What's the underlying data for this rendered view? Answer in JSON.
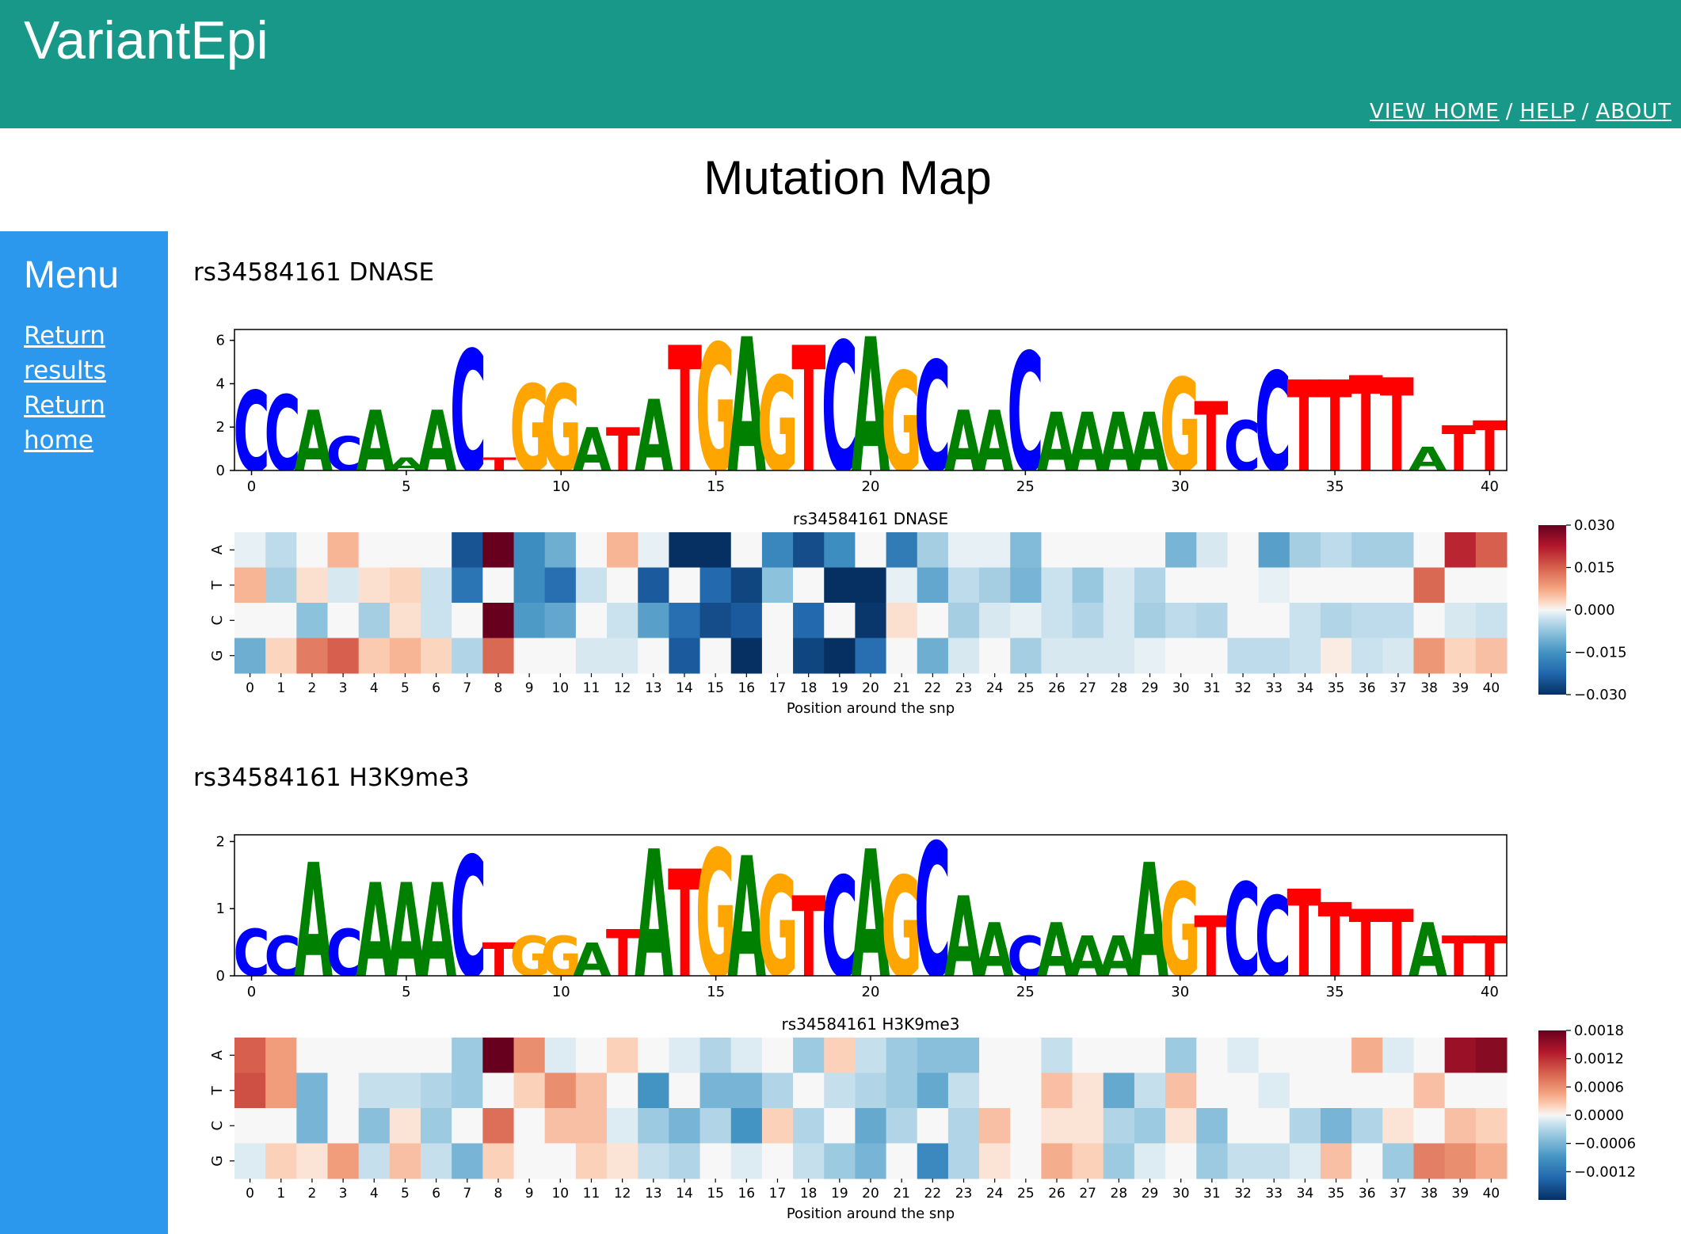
{
  "app": {
    "title": "VariantEpi"
  },
  "nav": {
    "items": [
      "VIEW HOME",
      "HELP",
      "ABOUT"
    ],
    "separator": "/"
  },
  "page": {
    "title": "Mutation Map"
  },
  "sidebar": {
    "title": "Menu",
    "links": [
      "Return results",
      "Return home"
    ]
  },
  "colors": {
    "header": "#189888",
    "sidebar": "#2b98ee",
    "A": "#008000",
    "C": "#0000ff",
    "G": "#ffa500",
    "T": "#ff0000"
  },
  "sections": [
    {
      "title": "rs34584161 DNASE"
    },
    {
      "title": "rs34584161 H3K9me3"
    }
  ],
  "chart_data": [
    {
      "type": "sequence-logo",
      "sequence": "CCACAAACTGGATATGAGTCAGCAACAAAAGTCCTTTTATT",
      "heights": [
        3.7,
        3.5,
        2.8,
        1.6,
        2.8,
        0.6,
        2.8,
        5.6,
        0.6,
        4.0,
        4.0,
        2.0,
        2.0,
        3.3,
        5.8,
        5.9,
        6.2,
        4.4,
        5.8,
        6.0,
        6.2,
        4.6,
        5.1,
        2.8,
        2.8,
        5.5,
        2.7,
        2.7,
        2.7,
        2.7,
        4.3,
        3.2,
        2.3,
        4.6,
        4.2,
        4.2,
        4.4,
        4.3,
        1.1,
        2.1,
        2.3
      ],
      "ylim": [
        0,
        6.5
      ],
      "yticks": [
        "0",
        "2",
        "4",
        "6"
      ],
      "xticks": [
        "0",
        "5",
        "10",
        "15",
        "20",
        "25",
        "30",
        "35",
        "40"
      ]
    },
    {
      "type": "heatmap",
      "title": "rs34584161 DNASE",
      "xlabel": "Position around the snp",
      "rows": [
        "A",
        "T",
        "C",
        "G"
      ],
      "columns": [
        "0",
        "1",
        "2",
        "3",
        "4",
        "5",
        "6",
        "7",
        "8",
        "9",
        "10",
        "11",
        "12",
        "13",
        "14",
        "15",
        "16",
        "17",
        "18",
        "19",
        "20",
        "21",
        "22",
        "23",
        "24",
        "25",
        "26",
        "27",
        "28",
        "29",
        "30",
        "31",
        "32",
        "33",
        "34",
        "35",
        "36",
        "37",
        "38",
        "39",
        "40"
      ],
      "values": [
        [
          -0.001,
          -0.004,
          0.0,
          0.006,
          0.0,
          0.0,
          0.0,
          -0.025,
          0.035,
          -0.016,
          -0.011,
          0.0,
          0.006,
          -0.001,
          -0.03,
          -0.033,
          0.0,
          -0.017,
          -0.026,
          -0.016,
          0.0,
          -0.019,
          -0.006,
          -0.001,
          -0.001,
          -0.009,
          0.0,
          0.0,
          0.0,
          0.0,
          -0.01,
          -0.002,
          0.0,
          -0.013,
          -0.006,
          -0.004,
          -0.006,
          -0.006,
          0.0,
          0.021,
          0.015
        ],
        [
          0.006,
          -0.006,
          0.002,
          -0.002,
          0.002,
          0.003,
          -0.003,
          -0.02,
          0.0,
          -0.016,
          -0.021,
          -0.003,
          0.0,
          -0.024,
          0.0,
          -0.022,
          -0.027,
          -0.008,
          0.0,
          -0.031,
          -0.032,
          -0.001,
          -0.012,
          -0.004,
          -0.006,
          -0.01,
          -0.003,
          -0.007,
          -0.002,
          -0.005,
          0.0,
          0.0,
          0.0,
          -0.001,
          0.0,
          0.0,
          0.0,
          0.0,
          0.014,
          0.0,
          0.0
        ],
        [
          0.0,
          0.0,
          -0.008,
          0.0,
          -0.006,
          0.002,
          -0.003,
          0.0,
          0.035,
          -0.014,
          -0.012,
          0.0,
          -0.003,
          -0.013,
          -0.021,
          -0.026,
          -0.024,
          0.0,
          -0.022,
          0.0,
          -0.029,
          0.002,
          0.0,
          -0.006,
          -0.002,
          -0.001,
          -0.003,
          -0.005,
          -0.002,
          -0.006,
          -0.004,
          -0.005,
          0.0,
          0.0,
          -0.003,
          -0.005,
          -0.004,
          -0.004,
          0.0,
          -0.002,
          -0.003
        ],
        [
          -0.011,
          0.003,
          0.012,
          0.015,
          0.004,
          0.006,
          0.003,
          -0.005,
          0.014,
          0.0,
          0.0,
          -0.002,
          -0.002,
          0.0,
          -0.024,
          0.0,
          -0.03,
          0.0,
          -0.027,
          -0.03,
          -0.021,
          0.0,
          -0.011,
          -0.002,
          0.0,
          -0.006,
          -0.002,
          -0.002,
          -0.002,
          -0.001,
          0.0,
          0.0,
          -0.004,
          -0.004,
          -0.003,
          0.001,
          -0.003,
          -0.002,
          0.009,
          0.003,
          0.005
        ]
      ],
      "colorbar": {
        "ticks": [
          "0.030",
          "0.015",
          "0.000",
          "−0.015",
          "−0.030"
        ]
      }
    },
    {
      "type": "sequence-logo",
      "sequence": "CCACAAACTGGATATGAGTCAGCAACAAAAGTCCTTTTATT",
      "heights": [
        0.7,
        0.6,
        1.7,
        0.7,
        1.4,
        1.4,
        1.4,
        1.8,
        0.5,
        0.6,
        0.6,
        0.5,
        0.7,
        1.9,
        1.6,
        1.9,
        1.8,
        1.5,
        1.2,
        1.5,
        1.9,
        1.5,
        2.0,
        1.2,
        0.8,
        0.6,
        0.8,
        0.6,
        0.6,
        1.7,
        1.4,
        0.9,
        1.4,
        1.2,
        1.3,
        1.1,
        1.0,
        1.0,
        0.8,
        0.6,
        0.6
      ],
      "ylim": [
        0,
        2.1
      ],
      "yticks": [
        "0",
        "1",
        "2"
      ],
      "xticks": [
        "0",
        "5",
        "10",
        "15",
        "20",
        "25",
        "30",
        "35",
        "40"
      ]
    },
    {
      "type": "heatmap",
      "title": "rs34584161 H3K9me3",
      "xlabel": "Position around the snp",
      "rows": [
        "A",
        "T",
        "C",
        "G"
      ],
      "columns": [
        "0",
        "1",
        "2",
        "3",
        "4",
        "5",
        "6",
        "7",
        "8",
        "9",
        "10",
        "11",
        "12",
        "13",
        "14",
        "15",
        "16",
        "17",
        "18",
        "19",
        "20",
        "21",
        "22",
        "23",
        "24",
        "25",
        "26",
        "27",
        "28",
        "29",
        "30",
        "31",
        "32",
        "33",
        "34",
        "35",
        "36",
        "37",
        "38",
        "39",
        "40"
      ],
      "values": [
        [
          0.0009,
          0.0005,
          0.0,
          0.0,
          0.0,
          0.0,
          0.0,
          -0.0004,
          0.0021,
          0.0006,
          -0.0001,
          0.0,
          0.0002,
          0.0,
          -0.0001,
          -0.0003,
          -0.0001,
          0.0,
          -0.0004,
          0.0002,
          -0.0002,
          -0.0004,
          -0.0005,
          -0.0005,
          0.0,
          0.0,
          -0.0002,
          0.0,
          0.0,
          0.0,
          -0.0004,
          0.0,
          -0.0001,
          0.0,
          0.0,
          0.0,
          0.0004,
          -0.0001,
          0.0,
          0.0015,
          0.0016
        ],
        [
          0.001,
          0.0005,
          -0.0006,
          0.0,
          -0.0002,
          -0.0002,
          -0.0003,
          -0.0004,
          0.0,
          0.0002,
          0.0006,
          0.0003,
          0.0,
          -0.0009,
          0.0,
          -0.0006,
          -0.0006,
          -0.0003,
          0.0,
          -0.0002,
          -0.0003,
          -0.0004,
          -0.0007,
          -0.0002,
          0.0,
          0.0,
          0.0003,
          0.0001,
          -0.0007,
          -0.0002,
          0.0003,
          0.0,
          0.0,
          -0.0001,
          0.0,
          0.0,
          0.0,
          0.0,
          0.0003,
          0.0,
          0.0
        ],
        [
          0.0,
          0.0,
          -0.0006,
          0.0,
          -0.0005,
          0.0001,
          -0.0004,
          0.0,
          0.0008,
          0.0,
          0.0003,
          0.0003,
          -0.0001,
          -0.0004,
          -0.0006,
          -0.0003,
          -0.0009,
          0.0002,
          -0.0003,
          0.0,
          -0.0007,
          -0.0003,
          0.0,
          -0.0003,
          0.0003,
          0.0,
          0.0001,
          0.0001,
          -0.0003,
          -0.0004,
          0.0001,
          -0.0005,
          0.0,
          0.0,
          -0.0003,
          -0.0006,
          -0.0003,
          0.0001,
          0.0,
          0.0003,
          0.0002
        ],
        [
          -0.0001,
          0.0002,
          0.0001,
          0.0005,
          -0.0002,
          0.0003,
          -0.0002,
          -0.0006,
          0.0002,
          0.0,
          0.0,
          0.0002,
          0.0001,
          -0.0002,
          -0.0003,
          0.0,
          -0.0001,
          0.0,
          -0.0002,
          -0.0004,
          -0.0006,
          0.0,
          -0.001,
          -0.0003,
          0.0001,
          0.0,
          0.0004,
          0.0002,
          -0.0004,
          -0.0001,
          0.0,
          -0.0004,
          -0.0002,
          -0.0002,
          -0.0001,
          0.0003,
          0.0,
          -0.0004,
          0.0007,
          0.0006,
          0.0004
        ]
      ],
      "colorbar": {
        "ticks": [
          "0.0018",
          "0.0012",
          "0.0006",
          "0.0000",
          "−0.0006",
          "−0.0012"
        ]
      }
    }
  ]
}
